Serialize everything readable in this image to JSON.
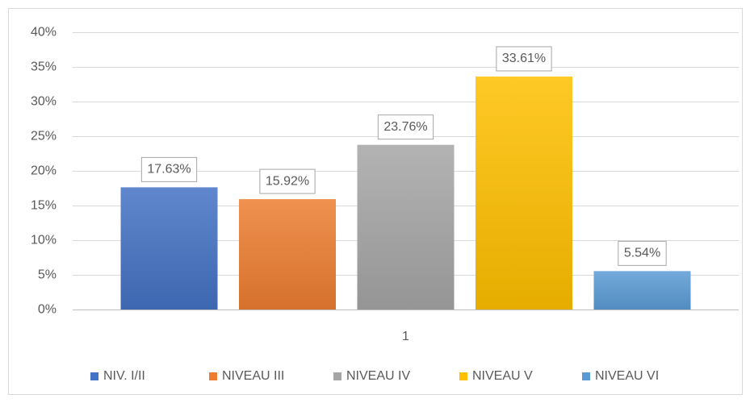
{
  "chart_data": {
    "type": "bar",
    "categories": [
      "1"
    ],
    "series": [
      {
        "name": "NIV. I/II",
        "color": "#4472c4",
        "values": [
          17.63
        ],
        "value_labels": [
          "17.63%"
        ]
      },
      {
        "name": "NIVEAU III",
        "color": "#ed7d31",
        "values": [
          15.92
        ],
        "value_labels": [
          "15.92%"
        ]
      },
      {
        "name": "NIVEAU IV",
        "color": "#a5a5a5",
        "values": [
          23.76
        ],
        "value_labels": [
          "23.76%"
        ]
      },
      {
        "name": "NIVEAU V",
        "color": "#ffc000",
        "values": [
          33.61
        ],
        "value_labels": [
          "33.61%"
        ]
      },
      {
        "name": "NIVEAU VI",
        "color": "#5b9bd5",
        "values": [
          5.54
        ],
        "value_labels": [
          "5.54%"
        ]
      }
    ],
    "ylim": [
      0,
      40
    ],
    "yticks": [
      {
        "value": 0,
        "label": "0%"
      },
      {
        "value": 5,
        "label": "5%"
      },
      {
        "value": 10,
        "label": "10%"
      },
      {
        "value": 15,
        "label": "15%"
      },
      {
        "value": 20,
        "label": "20%"
      },
      {
        "value": 25,
        "label": "25%"
      },
      {
        "value": 30,
        "label": "30%"
      },
      {
        "value": 35,
        "label": "35%"
      },
      {
        "value": 40,
        "label": "40%"
      }
    ],
    "grid": true,
    "legend": "bottom"
  }
}
